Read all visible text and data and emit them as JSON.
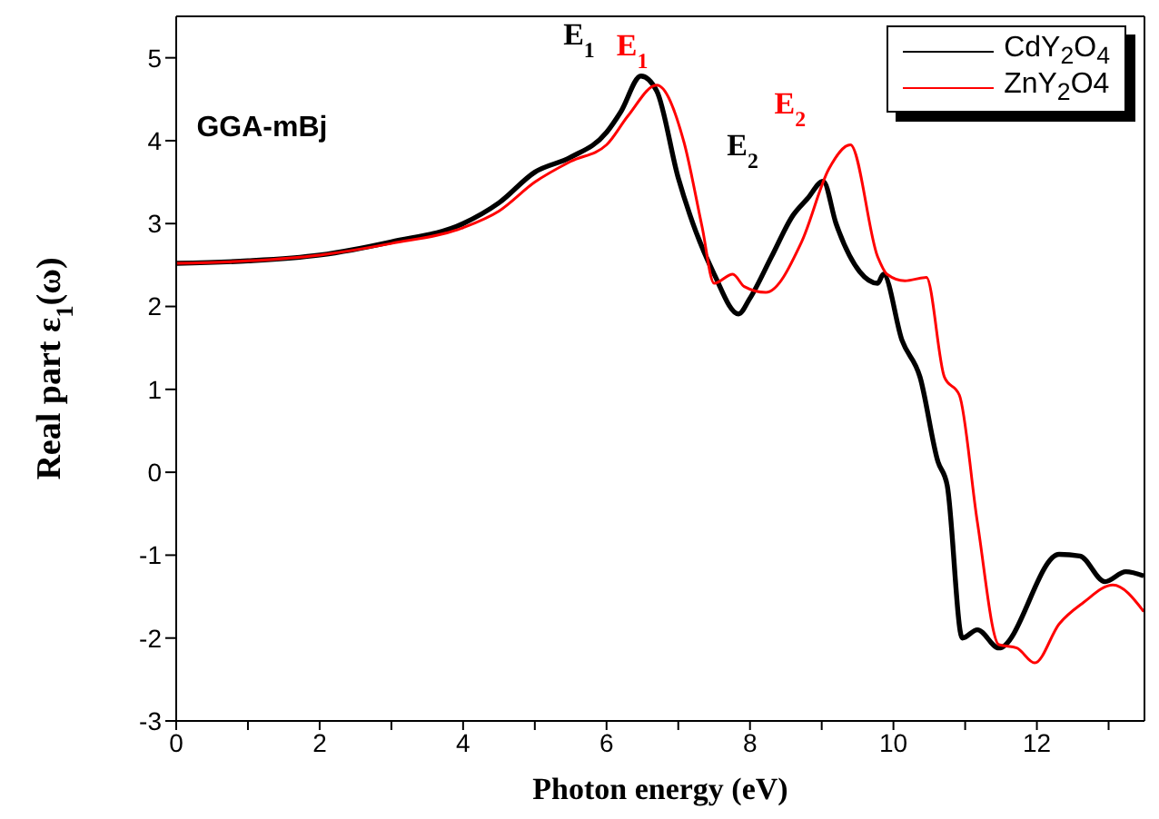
{
  "chart_data": {
    "type": "line",
    "xlabel": "Photon energy (eV)",
    "ylabel": "Real part ε$_{1}$(ω)",
    "xlim": [
      0,
      13.5
    ],
    "ylim": [
      -3,
      5.5
    ],
    "xticks": [
      0,
      {
        "value": 1,
        "label": null
      },
      2,
      {
        "value": 3,
        "label": null
      },
      4,
      {
        "value": 5,
        "label": null
      },
      6,
      {
        "value": 7,
        "label": null
      },
      8,
      {
        "value": 9,
        "label": null
      },
      10,
      {
        "value": 11,
        "label": null
      },
      12,
      {
        "value": 13,
        "label": null
      }
    ],
    "yticks": [
      -3,
      -2,
      -1,
      0,
      1,
      2,
      3,
      4,
      5
    ],
    "grid": false,
    "legend": "top right",
    "line_style": "solid",
    "marker": "none",
    "annotations": [
      "E$_{1}$",
      "E$_{1}$",
      "E$_{2}$",
      "E$_{2}$",
      "GGA-mBj"
    ],
    "series": [
      {
        "name": "CdY$_{2}$O$_{4}$",
        "color": "#000000",
        "x": [
          0,
          1,
          2,
          3,
          4,
          4.5,
          5,
          5.5,
          6,
          6.2,
          6.48,
          6.7,
          7.0,
          7.16,
          7.5,
          7.84,
          8.0,
          8.3,
          8.6,
          8.8,
          9.02,
          9.2,
          9.53,
          9.78,
          9.86,
          10.12,
          10.37,
          10.62,
          10.75,
          10.96,
          11.17,
          11.47,
          12.31,
          12.6,
          12.95,
          13.24,
          13.49
        ],
        "values": [
          2.52,
          2.55,
          2.62,
          2.78,
          3.0,
          3.25,
          3.62,
          3.8,
          4.1,
          4.35,
          4.78,
          4.6,
          3.55,
          3.11,
          2.39,
          1.91,
          2.1,
          2.6,
          3.1,
          3.3,
          3.51,
          3.0,
          2.42,
          2.28,
          2.39,
          1.59,
          1.15,
          0.13,
          -0.16,
          -2.0,
          -1.9,
          -2.12,
          -0.99,
          -1.01,
          -1.32,
          -1.2,
          -1.25
        ]
      },
      {
        "name": "ZnY$_{2}$O4",
        "color": "#ff0000",
        "x": [
          0,
          1,
          2,
          3,
          4,
          4.5,
          5,
          5.5,
          6,
          6.3,
          6.7,
          7.08,
          7.33,
          7.5,
          7.76,
          7.92,
          8.22,
          8.72,
          9.1,
          9.4,
          9.78,
          9.91,
          10.16,
          10.46,
          10.71,
          10.92,
          11.17,
          11.47,
          11.72,
          11.97,
          12.31,
          12.65,
          13.06,
          13.49
        ],
        "values": [
          2.52,
          2.55,
          2.62,
          2.76,
          2.95,
          3.15,
          3.5,
          3.75,
          3.95,
          4.3,
          4.67,
          3.98,
          2.97,
          2.28,
          2.39,
          2.24,
          2.17,
          2.78,
          3.66,
          3.95,
          2.6,
          2.39,
          2.31,
          2.35,
          1.15,
          0.93,
          -0.6,
          -2.08,
          -2.12,
          -2.3,
          -1.83,
          -1.57,
          -1.36,
          -1.68
        ]
      }
    ]
  }
}
